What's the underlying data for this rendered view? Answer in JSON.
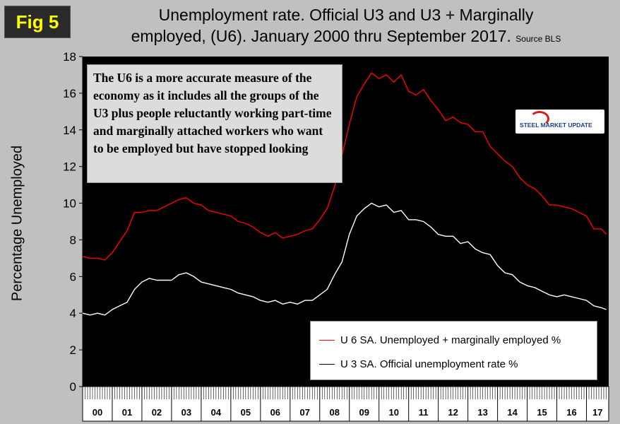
{
  "badge": "Fig 5",
  "title": {
    "line1": "Unemployment rate. Official U3 and U3 + Marginally",
    "line2": "employed, (U6). January 2000 thru September 2017.",
    "source": "Source BLS"
  },
  "note": "The U6 is a more accurate measure of the economy as it includes all the groups of the U3 plus people reluctantly working part-time and marginally attached workers who want to be employed but have stopped looking",
  "logo": {
    "label": "STEEL MARKET UPDATE"
  },
  "colors": {
    "u6": "#ff0000",
    "u3": "#ffffff",
    "plot_bg": "#000000",
    "page_bg": "#c0c0c0"
  },
  "chart_data": {
    "type": "line",
    "title": "Unemployment rate. Official U3 and U3 + Marginally employed, (U6). January 2000 thru September 2017.",
    "ylabel": "Percentage Unemployed",
    "xlabel": "",
    "ylim": [
      0,
      18
    ],
    "yticks": [
      0,
      2,
      4,
      6,
      8,
      10,
      12,
      14,
      16,
      18
    ],
    "xticks": [
      "00",
      "01",
      "02",
      "03",
      "04",
      "05",
      "06",
      "07",
      "08",
      "09",
      "10",
      "11",
      "12",
      "13",
      "14",
      "15",
      "16",
      "17"
    ],
    "grid": false,
    "legend_position": "bottom-right",
    "series": [
      {
        "name": "U 6 SA. Unemployed + marginally employed %",
        "color": "#ff0000",
        "x": [
          2000.0,
          2000.25,
          2000.5,
          2000.75,
          2001.0,
          2001.25,
          2001.5,
          2001.75,
          2002.0,
          2002.25,
          2002.5,
          2002.75,
          2003.0,
          2003.25,
          2003.5,
          2003.75,
          2004.0,
          2004.25,
          2004.5,
          2004.75,
          2005.0,
          2005.25,
          2005.5,
          2005.75,
          2006.0,
          2006.25,
          2006.5,
          2006.75,
          2007.0,
          2007.25,
          2007.5,
          2007.75,
          2008.0,
          2008.25,
          2008.5,
          2008.75,
          2009.0,
          2009.25,
          2009.5,
          2009.75,
          2010.0,
          2010.25,
          2010.5,
          2010.75,
          2011.0,
          2011.25,
          2011.5,
          2011.75,
          2012.0,
          2012.25,
          2012.5,
          2012.75,
          2013.0,
          2013.25,
          2013.5,
          2013.75,
          2014.0,
          2014.25,
          2014.5,
          2014.75,
          2015.0,
          2015.25,
          2015.5,
          2015.75,
          2016.0,
          2016.25,
          2016.5,
          2016.75,
          2017.0,
          2017.25,
          2017.5,
          2017.67
        ],
        "values": [
          7.1,
          7.0,
          7.0,
          6.9,
          7.3,
          7.9,
          8.5,
          9.5,
          9.5,
          9.6,
          9.6,
          9.8,
          10.0,
          10.2,
          10.3,
          10.0,
          9.9,
          9.6,
          9.5,
          9.4,
          9.3,
          9.0,
          8.9,
          8.7,
          8.4,
          8.2,
          8.4,
          8.1,
          8.2,
          8.3,
          8.5,
          8.6,
          9.1,
          9.7,
          10.9,
          12.6,
          14.3,
          15.8,
          16.5,
          17.1,
          16.8,
          17.0,
          16.6,
          17.0,
          16.1,
          15.9,
          16.2,
          15.6,
          15.1,
          14.5,
          14.7,
          14.4,
          14.3,
          13.9,
          13.9,
          13.1,
          12.7,
          12.3,
          12.0,
          11.4,
          11.0,
          10.8,
          10.4,
          9.9,
          9.9,
          9.8,
          9.7,
          9.5,
          9.3,
          8.6,
          8.6,
          8.3
        ]
      },
      {
        "name": "U 3 SA. Official unemployment rate %",
        "color": "#ffffff",
        "x": [
          2000.0,
          2000.25,
          2000.5,
          2000.75,
          2001.0,
          2001.25,
          2001.5,
          2001.75,
          2002.0,
          2002.25,
          2002.5,
          2002.75,
          2003.0,
          2003.25,
          2003.5,
          2003.75,
          2004.0,
          2004.25,
          2004.5,
          2004.75,
          2005.0,
          2005.25,
          2005.5,
          2005.75,
          2006.0,
          2006.25,
          2006.5,
          2006.75,
          2007.0,
          2007.25,
          2007.5,
          2007.75,
          2008.0,
          2008.25,
          2008.5,
          2008.75,
          2009.0,
          2009.25,
          2009.5,
          2009.75,
          2010.0,
          2010.25,
          2010.5,
          2010.75,
          2011.0,
          2011.25,
          2011.5,
          2011.75,
          2012.0,
          2012.25,
          2012.5,
          2012.75,
          2013.0,
          2013.25,
          2013.5,
          2013.75,
          2014.0,
          2014.25,
          2014.5,
          2014.75,
          2015.0,
          2015.25,
          2015.5,
          2015.75,
          2016.0,
          2016.25,
          2016.5,
          2016.75,
          2017.0,
          2017.25,
          2017.5,
          2017.67
        ],
        "values": [
          4.0,
          3.9,
          4.0,
          3.9,
          4.2,
          4.4,
          4.6,
          5.3,
          5.7,
          5.9,
          5.8,
          5.8,
          5.8,
          6.1,
          6.2,
          6.0,
          5.7,
          5.6,
          5.5,
          5.4,
          5.3,
          5.1,
          5.0,
          4.9,
          4.7,
          4.6,
          4.7,
          4.5,
          4.6,
          4.5,
          4.7,
          4.7,
          5.0,
          5.3,
          6.1,
          6.8,
          8.3,
          9.3,
          9.7,
          10.0,
          9.8,
          9.9,
          9.5,
          9.6,
          9.1,
          9.1,
          9.0,
          8.7,
          8.3,
          8.2,
          8.2,
          7.8,
          7.9,
          7.5,
          7.3,
          7.2,
          6.6,
          6.2,
          6.1,
          5.7,
          5.5,
          5.4,
          5.2,
          5.0,
          4.9,
          5.0,
          4.9,
          4.8,
          4.7,
          4.4,
          4.3,
          4.2
        ]
      }
    ]
  }
}
